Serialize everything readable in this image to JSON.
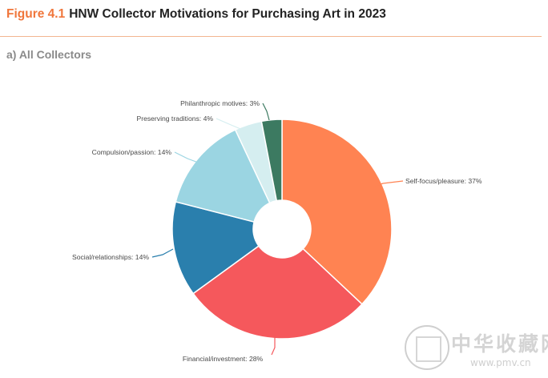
{
  "header": {
    "figure_number": "Figure 4.1",
    "title": "HNW Collector Motivations for Purchasing Art in 2023"
  },
  "subtitle": "a) All Collectors",
  "chart_data": {
    "type": "pie",
    "donut": true,
    "title": "HNW Collector Motivations for Purchasing Art in 2023",
    "subtitle": "a) All Collectors",
    "slices": [
      {
        "label": "Self-focus/pleasure: 37%",
        "category": "Self-focus/pleasure",
        "value": 37,
        "color": "#ff8352"
      },
      {
        "label": "Financial/investment: 28%",
        "category": "Financial/investment",
        "value": 28,
        "color": "#f5585c"
      },
      {
        "label": "Social/relationships: 14%",
        "category": "Social/relationships",
        "value": 14,
        "color": "#2a7fad"
      },
      {
        "label": "Compulsion/passion: 14%",
        "category": "Compulsion/passion",
        "value": 14,
        "color": "#9bd5e2"
      },
      {
        "label": "Preserving traditions: 4%",
        "category": "Preserving traditions",
        "value": 4,
        "color": "#d5eef0"
      },
      {
        "label": "Philanthropic motives: 3%",
        "category": "Philanthropic motives",
        "value": 3,
        "color": "#3c7a61"
      }
    ],
    "legend": "none"
  },
  "watermark": {
    "text_cn": "中华收藏网",
    "url": "www.pmv.cn"
  }
}
